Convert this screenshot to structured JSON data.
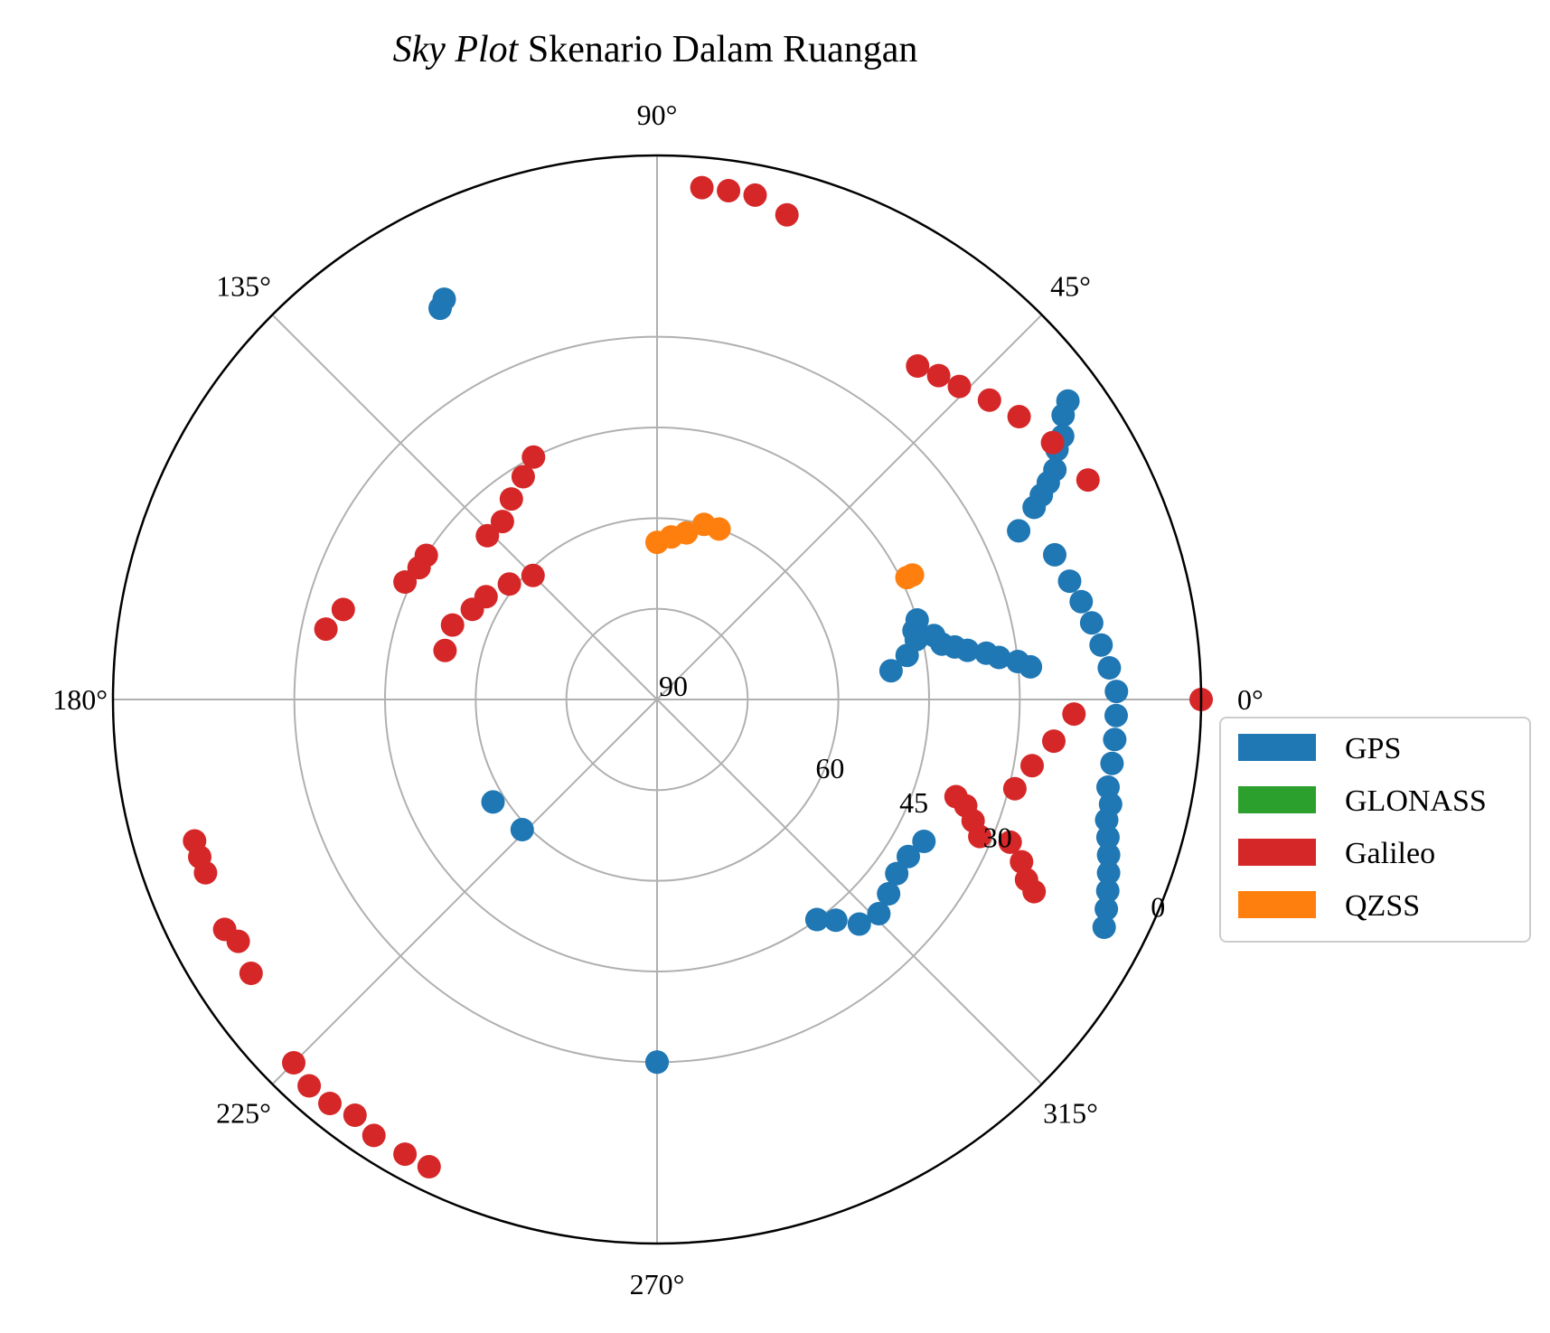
{
  "chart_data": {
    "type": "scatter",
    "projection": "polar",
    "title_italic": "Sky Plot",
    "title_rest": " Skenario Dalam Ruangan",
    "theta_tick_labels": [
      "0°",
      "45°",
      "90°",
      "135°",
      "180°",
      "225°",
      "270°",
      "315°"
    ],
    "radial_tick_labels": [
      "90",
      "60",
      "45",
      "30",
      "0"
    ],
    "radial_range": [
      90,
      0
    ],
    "grid": true,
    "legend_position": "right",
    "series": [
      {
        "name": "GPS",
        "color": "#1f77b4",
        "points": [
          {
            "az": 13,
            "el": 43
          },
          {
            "az": 11,
            "el": 42
          },
          {
            "az": 10,
            "el": 40
          },
          {
            "az": 9,
            "el": 38
          },
          {
            "az": 8,
            "el": 35
          },
          {
            "az": 7,
            "el": 33
          },
          {
            "az": 6,
            "el": 30
          },
          {
            "az": 5,
            "el": 28
          },
          {
            "az": 7,
            "el": 51
          },
          {
            "az": 10,
            "el": 48
          },
          {
            "az": 13,
            "el": 46
          },
          {
            "az": 15,
            "el": 46
          },
          {
            "az": 17,
            "el": 45
          },
          {
            "az": 36,
            "el": 6
          },
          {
            "az": 35,
            "el": 8
          },
          {
            "az": 33,
            "el": 10
          },
          {
            "az": 32,
            "el": 12
          },
          {
            "az": 30,
            "el": 14
          },
          {
            "az": 29,
            "el": 16
          },
          {
            "az": 28,
            "el": 18
          },
          {
            "az": 27,
            "el": 20
          },
          {
            "az": 25,
            "el": 24
          },
          {
            "az": 20,
            "el": 20
          },
          {
            "az": 16,
            "el": 19
          },
          {
            "az": 13,
            "el": 18
          },
          {
            "az": 10,
            "el": 17
          },
          {
            "az": 7,
            "el": 16
          },
          {
            "az": 4,
            "el": 15
          },
          {
            "az": 1,
            "el": 14
          },
          {
            "az": -2,
            "el": 14
          },
          {
            "az": -5,
            "el": 14
          },
          {
            "az": -8,
            "el": 14
          },
          {
            "az": -11,
            "el": 14
          },
          {
            "az": -13,
            "el": 13
          },
          {
            "az": -15,
            "el": 13
          },
          {
            "az": -17,
            "el": 12
          },
          {
            "az": -19,
            "el": 11
          },
          {
            "az": -21,
            "el": 10
          },
          {
            "az": -23,
            "el": 9
          },
          {
            "az": -25,
            "el": 8
          },
          {
            "az": -27,
            "el": 7
          },
          {
            "az": -28,
            "el": 40
          },
          {
            "az": -32,
            "el": 41
          },
          {
            "az": -36,
            "el": 41
          },
          {
            "az": -40,
            "el": 40
          },
          {
            "az": -44,
            "el": 39
          },
          {
            "az": -48,
            "el": 40
          },
          {
            "az": -51,
            "el": 43
          },
          {
            "az": -54,
            "el": 45
          },
          {
            "az": -90,
            "el": 30
          },
          {
            "az": -90,
            "el": 30
          },
          {
            "az": 119,
            "el": 16
          },
          {
            "az": 118,
            "el": 15
          },
          {
            "az": 212,
            "el": 58
          },
          {
            "az": 224,
            "el": 59
          }
        ]
      },
      {
        "name": "GLONASS",
        "color": "#2ca02c",
        "points": []
      },
      {
        "name": "Galileo",
        "color": "#d62728",
        "points": [
          {
            "az": 167,
            "el": 54
          },
          {
            "az": 160,
            "el": 54
          },
          {
            "az": 154,
            "el": 56
          },
          {
            "az": 149,
            "el": 57
          },
          {
            "az": 142,
            "el": 59
          },
          {
            "az": 135,
            "el": 61
          },
          {
            "az": 27,
            "el": 10
          },
          {
            "az": 33,
            "el": 12
          },
          {
            "az": 38,
            "el": 14
          },
          {
            "az": 42,
            "el": 16
          },
          {
            "az": 46,
            "el": 18
          },
          {
            "az": 49,
            "el": 19
          },
          {
            "az": 52,
            "el": 20
          },
          {
            "az": 75,
            "el": 7
          },
          {
            "az": 79,
            "el": 5
          },
          {
            "az": 82,
            "el": 5
          },
          {
            "az": 85,
            "el": 5
          },
          {
            "az": 0,
            "el": 0
          },
          {
            "az": -2,
            "el": 21
          },
          {
            "az": -6,
            "el": 24
          },
          {
            "az": -10,
            "el": 27
          },
          {
            "az": -14,
            "el": 29
          },
          {
            "az": -27,
            "el": 20
          },
          {
            "az": -26,
            "el": 22
          },
          {
            "az": -24,
            "el": 24
          },
          {
            "az": -22,
            "el": 27
          },
          {
            "az": -23,
            "el": 32
          },
          {
            "az": -21,
            "el": 34
          },
          {
            "az": -19,
            "el": 36
          },
          {
            "az": -18,
            "el": 38
          },
          {
            "az": 117,
            "el": 45
          },
          {
            "az": 121,
            "el": 47
          },
          {
            "az": 126,
            "el": 49
          },
          {
            "az": 131,
            "el": 51
          },
          {
            "az": 136,
            "el": 51
          },
          {
            "az": 148,
            "el": 45
          },
          {
            "az": 151,
            "el": 45
          },
          {
            "az": 155,
            "el": 44
          },
          {
            "az": 164,
            "el": 36
          },
          {
            "az": 168,
            "el": 34
          },
          {
            "az": 197,
            "el": 10
          },
          {
            "az": 199,
            "el": 10
          },
          {
            "az": 201,
            "el": 10
          },
          {
            "az": 208,
            "el": 9
          },
          {
            "az": 210,
            "el": 10
          },
          {
            "az": 214,
            "el": 9
          },
          {
            "az": 225,
            "el": 5
          },
          {
            "az": 228,
            "el": 4
          },
          {
            "az": 231,
            "el": 4
          },
          {
            "az": 234,
            "el": 5
          },
          {
            "az": 237,
            "el": 4
          },
          {
            "az": 241,
            "el": 4
          },
          {
            "az": 244,
            "el": 4
          }
        ]
      },
      {
        "name": "QZSS",
        "color": "#ff7f0e",
        "points": [
          {
            "az": 90,
            "el": 64
          },
          {
            "az": 85,
            "el": 63
          },
          {
            "az": 80,
            "el": 62
          },
          {
            "az": 75,
            "el": 60
          },
          {
            "az": 70,
            "el": 60
          },
          {
            "az": 26,
            "el": 44
          },
          {
            "az": 26,
            "el": 43
          }
        ]
      }
    ]
  }
}
